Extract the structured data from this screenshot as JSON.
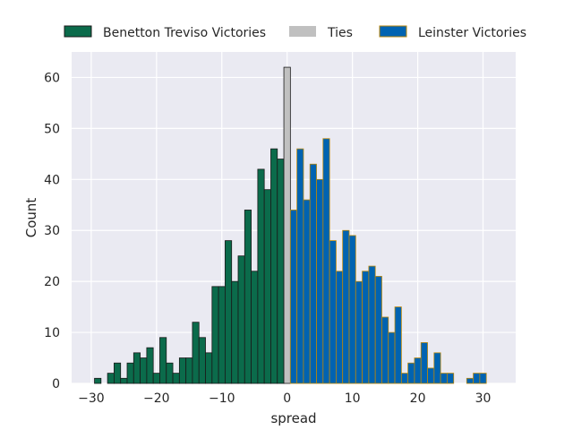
{
  "chart_data": {
    "type": "bar",
    "title": "",
    "xlabel": "spread",
    "ylabel": "Count",
    "xlim": [
      -33,
      35
    ],
    "ylim": [
      0,
      65
    ],
    "xticks": [
      -30,
      -20,
      -10,
      0,
      10,
      20,
      30
    ],
    "xtick_labels": [
      "−30",
      "−20",
      "−10",
      "0",
      "10",
      "20",
      "30"
    ],
    "yticks": [
      0,
      10,
      20,
      30,
      40,
      50,
      60
    ],
    "ytick_labels": [
      "0",
      "10",
      "20",
      "30",
      "40",
      "50",
      "60"
    ],
    "grid": true,
    "legend_position": "top",
    "bin_width": 1,
    "series": [
      {
        "name": "Benetton Treviso Victories",
        "color": "#0b6b4b",
        "edgecolor": "#1a1a1a",
        "x": [
          -29,
          -27,
          -26,
          -25,
          -24,
          -23,
          -22,
          -21,
          -20,
          -19,
          -18,
          -17,
          -16,
          -15,
          -14,
          -13,
          -12,
          -11,
          -10,
          -9,
          -8,
          -7,
          -6,
          -5,
          -4,
          -3,
          -2,
          -1
        ],
        "values": [
          1,
          2,
          4,
          1,
          4,
          6,
          5,
          7,
          2,
          9,
          4,
          2,
          5,
          5,
          12,
          9,
          6,
          19,
          19,
          28,
          20,
          25,
          34,
          22,
          42,
          38,
          46,
          44
        ]
      },
      {
        "name": "Ties",
        "color": "#c0c0c0",
        "edgecolor": "#1a1a1a",
        "x": [
          0
        ],
        "values": [
          62
        ]
      },
      {
        "name": "Leinster Victories",
        "color": "#0063b1",
        "edgecolor": "#b8860b",
        "x": [
          1,
          2,
          3,
          4,
          5,
          6,
          7,
          8,
          9,
          10,
          11,
          12,
          13,
          14,
          15,
          16,
          17,
          18,
          19,
          20,
          21,
          22,
          23,
          24,
          25,
          28,
          29,
          30
        ],
        "values": [
          34,
          46,
          36,
          43,
          40,
          48,
          28,
          22,
          30,
          29,
          20,
          22,
          23,
          21,
          13,
          10,
          15,
          2,
          4,
          5,
          8,
          3,
          6,
          2,
          2,
          1,
          2,
          2
        ]
      }
    ]
  },
  "colors": {
    "plot_background": "#eaeaf2",
    "grid": "#ffffff",
    "text": "#262626"
  }
}
